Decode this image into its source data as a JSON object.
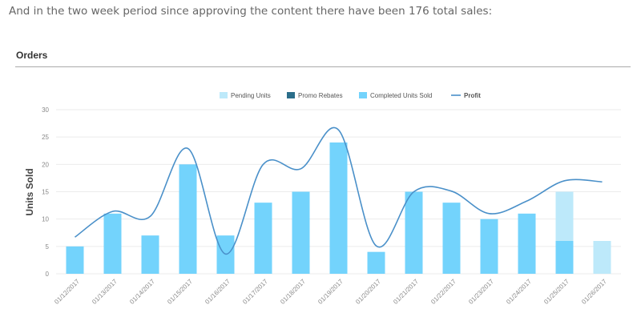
{
  "intro_text": "And in the two week period since approving the content there have been 176 total sales:",
  "card": {
    "title": "Orders"
  },
  "colors": {
    "pending": "#bde9fa",
    "promo": "#2b6e8a",
    "completed": "#73d3fc",
    "profit": "#4a90c9",
    "grid": "#ebebeb",
    "axis_text": "#888888"
  },
  "chart_data": {
    "type": "bar",
    "stacked": true,
    "categories": [
      "01/12/2017",
      "01/13/2017",
      "01/14/2017",
      "01/15/2017",
      "01/16/2017",
      "01/17/2017",
      "01/18/2017",
      "01/19/2017",
      "01/20/2017",
      "01/21/2017",
      "01/22/2017",
      "01/23/2017",
      "01/24/2017",
      "01/25/2017",
      "01/26/2017"
    ],
    "series": [
      {
        "name": "Pending Units",
        "type": "bar",
        "color": "#bde9fa",
        "values": [
          0,
          0,
          0,
          0,
          0,
          0,
          0,
          0,
          0,
          0,
          0,
          0,
          0,
          9,
          6
        ]
      },
      {
        "name": "Promo Rebates",
        "type": "bar",
        "color": "#2b6e8a",
        "values": [
          0,
          0,
          0,
          0,
          0,
          0,
          0,
          0,
          0,
          0,
          0,
          0,
          0,
          0,
          0
        ]
      },
      {
        "name": "Completed Units Sold",
        "type": "bar",
        "color": "#73d3fc",
        "values": [
          5,
          11,
          7,
          20,
          7,
          13,
          15,
          24,
          4,
          15,
          13,
          10,
          11,
          6,
          0
        ]
      },
      {
        "name": "Profit",
        "type": "line",
        "color": "#4a90c9",
        "values": [
          6.7,
          11.4,
          10.5,
          22.9,
          3.6,
          20.0,
          19.2,
          26.3,
          5.1,
          15.0,
          15.1,
          11.0,
          13.3,
          17.0,
          16.8
        ]
      }
    ],
    "ylabel": "Units Sold",
    "ylim": [
      0,
      30
    ],
    "yticks": [
      0,
      5,
      10,
      15,
      20,
      25,
      30
    ],
    "grid": true,
    "legend": "top-center"
  }
}
